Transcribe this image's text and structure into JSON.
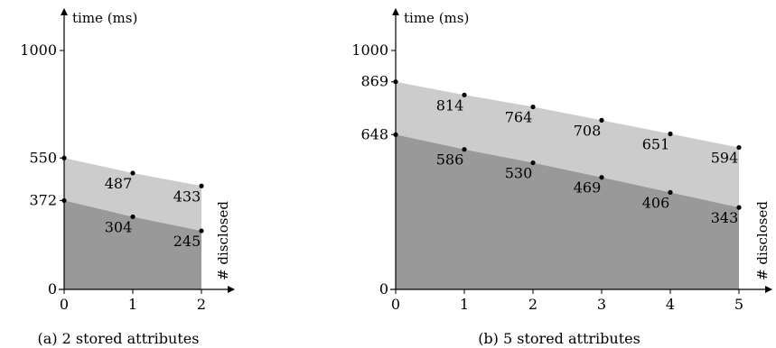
{
  "chart_data": [
    {
      "type": "area",
      "caption": "(a) 2 stored attributes",
      "ylabel": "time (ms)",
      "xlabel": "# disclosed",
      "x": [
        0,
        1,
        2
      ],
      "ylim": [
        0,
        1000
      ],
      "xlim": [
        0,
        2
      ],
      "y_tick_labels": [
        "0",
        "372",
        "550",
        "1000"
      ],
      "x_tick_labels": [
        "0",
        "1",
        "2"
      ],
      "grid": false,
      "series": [
        {
          "values": [
            372,
            304,
            245
          ],
          "color": "#999999"
        },
        {
          "values": [
            550,
            487,
            433
          ],
          "color": "#cccccc"
        }
      ]
    },
    {
      "type": "area",
      "caption": "(b) 5 stored attributes",
      "ylabel": "time (ms)",
      "xlabel": "# disclosed",
      "x": [
        0,
        1,
        2,
        3,
        4,
        5
      ],
      "ylim": [
        0,
        1000
      ],
      "xlim": [
        0,
        5
      ],
      "y_tick_labels": [
        "0",
        "648",
        "869",
        "1000"
      ],
      "x_tick_labels": [
        "0",
        "1",
        "2",
        "3",
        "4",
        "5"
      ],
      "grid": false,
      "series": [
        {
          "values": [
            648,
            586,
            530,
            469,
            406,
            343
          ],
          "color": "#999999"
        },
        {
          "values": [
            869,
            814,
            764,
            708,
            651,
            594
          ],
          "color": "#cccccc"
        }
      ]
    }
  ]
}
